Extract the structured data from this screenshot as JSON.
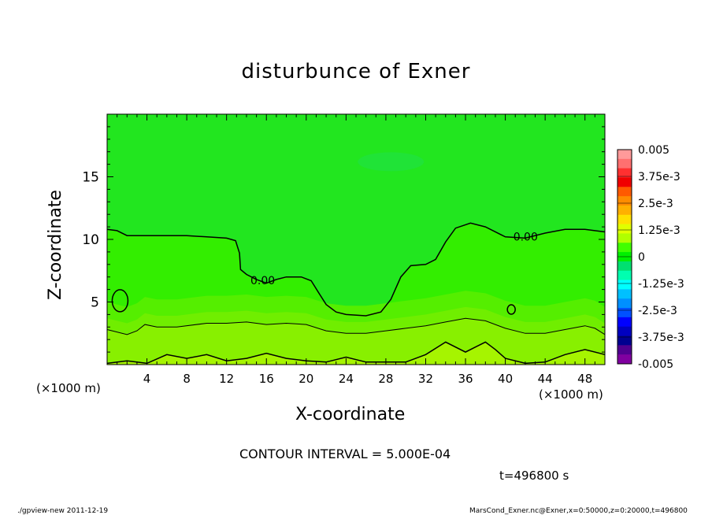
{
  "chart_data": {
    "type": "heatmap",
    "title": "disturbunce of Exner",
    "xlabel": "X-coordinate",
    "ylabel": "Z-coordinate",
    "x_unit": "(×1000 m)",
    "xlim": [
      0,
      50
    ],
    "ylim": [
      0,
      20
    ],
    "x_ticks": [
      4,
      8,
      12,
      16,
      20,
      24,
      28,
      32,
      36,
      40,
      44,
      48
    ],
    "y_ticks": [
      5,
      10,
      15
    ],
    "colorbar": {
      "labels": [
        "0.005",
        "3.75e-3",
        "2.5e-3",
        "1.25e-3",
        "0",
        "-1.25e-3",
        "-2.5e-3",
        "-3.75e-3",
        "-0.005"
      ],
      "colors": [
        "#ff9a9a",
        "#ff7070",
        "#ff3030",
        "#f00000",
        "#ff5a00",
        "#ff8c00",
        "#ffb000",
        "#ffe000",
        "#e0ff00",
        "#b0ff00",
        "#40ff00",
        "#00f000",
        "#00e070",
        "#00ffb0",
        "#00ffff",
        "#00c0ff",
        "#0090ff",
        "#0050ff",
        "#0000ff",
        "#0000c0",
        "#000090",
        "#500090",
        "#8000a0"
      ],
      "legend_position": "right"
    },
    "contour_interval": "CONTOUR INTERVAL = 5.000E-04",
    "contour_label": "0.00",
    "contour_0": [
      [
        0,
        10.8
      ],
      [
        1,
        10.7
      ],
      [
        2,
        10.3
      ],
      [
        4,
        10.3
      ],
      [
        6,
        10.3
      ],
      [
        8,
        10.3
      ],
      [
        10,
        10.2
      ],
      [
        12,
        10.1
      ],
      [
        12.9,
        9.9
      ],
      [
        13.3,
        8.9
      ],
      [
        13.4,
        7.6
      ],
      [
        14,
        7.2
      ],
      [
        15,
        6.8
      ],
      [
        16,
        6.5
      ],
      [
        17,
        6.8
      ],
      [
        18,
        7.0
      ],
      [
        19.5,
        7.0
      ],
      [
        20.5,
        6.7
      ],
      [
        21.2,
        5.8
      ],
      [
        22,
        4.8
      ],
      [
        23,
        4.2
      ],
      [
        24,
        4.0
      ],
      [
        26,
        3.9
      ],
      [
        27.5,
        4.2
      ],
      [
        28.5,
        5.2
      ],
      [
        29.5,
        7.0
      ],
      [
        30.5,
        7.9
      ],
      [
        32,
        8.0
      ],
      [
        33,
        8.4
      ],
      [
        34,
        9.8
      ],
      [
        35,
        10.9
      ],
      [
        36.5,
        11.3
      ],
      [
        38,
        11.0
      ],
      [
        40,
        10.2
      ],
      [
        42,
        10.1
      ],
      [
        44,
        10.5
      ],
      [
        46,
        10.8
      ],
      [
        48,
        10.8
      ],
      [
        50,
        10.6
      ]
    ],
    "contour_wavy": [
      [
        0,
        2.8
      ],
      [
        2,
        2.4
      ],
      [
        3,
        2.7
      ],
      [
        3.8,
        3.2
      ],
      [
        5,
        3.0
      ],
      [
        7,
        3.0
      ],
      [
        10,
        3.3
      ],
      [
        12,
        3.3
      ],
      [
        14,
        3.4
      ],
      [
        16,
        3.2
      ],
      [
        18,
        3.3
      ],
      [
        20,
        3.2
      ],
      [
        22,
        2.7
      ],
      [
        24,
        2.5
      ],
      [
        26,
        2.5
      ],
      [
        28,
        2.7
      ],
      [
        30,
        2.9
      ],
      [
        32,
        3.1
      ],
      [
        34,
        3.4
      ],
      [
        36,
        3.7
      ],
      [
        38,
        3.5
      ],
      [
        40,
        2.9
      ],
      [
        42,
        2.5
      ],
      [
        44,
        2.5
      ],
      [
        46,
        2.8
      ],
      [
        48,
        3.1
      ],
      [
        49,
        2.9
      ],
      [
        50,
        2.4
      ]
    ],
    "contour_low": [
      [
        0,
        0.1
      ],
      [
        2,
        0.3
      ],
      [
        4,
        0.1
      ],
      [
        6,
        0.8
      ],
      [
        8,
        0.5
      ],
      [
        10,
        0.8
      ],
      [
        12,
        0.3
      ],
      [
        14,
        0.5
      ],
      [
        16,
        0.9
      ],
      [
        18,
        0.5
      ],
      [
        20,
        0.3
      ],
      [
        22,
        0.2
      ],
      [
        24,
        0.6
      ],
      [
        26,
        0.2
      ],
      [
        28,
        0.2
      ],
      [
        30,
        0.2
      ],
      [
        32,
        0.8
      ],
      [
        34,
        1.8
      ],
      [
        36,
        1.0
      ],
      [
        37,
        1.4
      ],
      [
        38,
        1.8
      ],
      [
        39,
        1.2
      ],
      [
        40,
        0.5
      ],
      [
        42,
        0.1
      ],
      [
        44,
        0.2
      ],
      [
        46,
        0.8
      ],
      [
        48,
        1.2
      ],
      [
        50,
        0.8
      ]
    ]
  },
  "time_label": "t=496800 s",
  "footer": {
    "left": "./gpview-new   2011-12-19",
    "right": "MarsCond_Exner.nc@Exner,x=0:50000,z=0:20000,t=496800"
  }
}
